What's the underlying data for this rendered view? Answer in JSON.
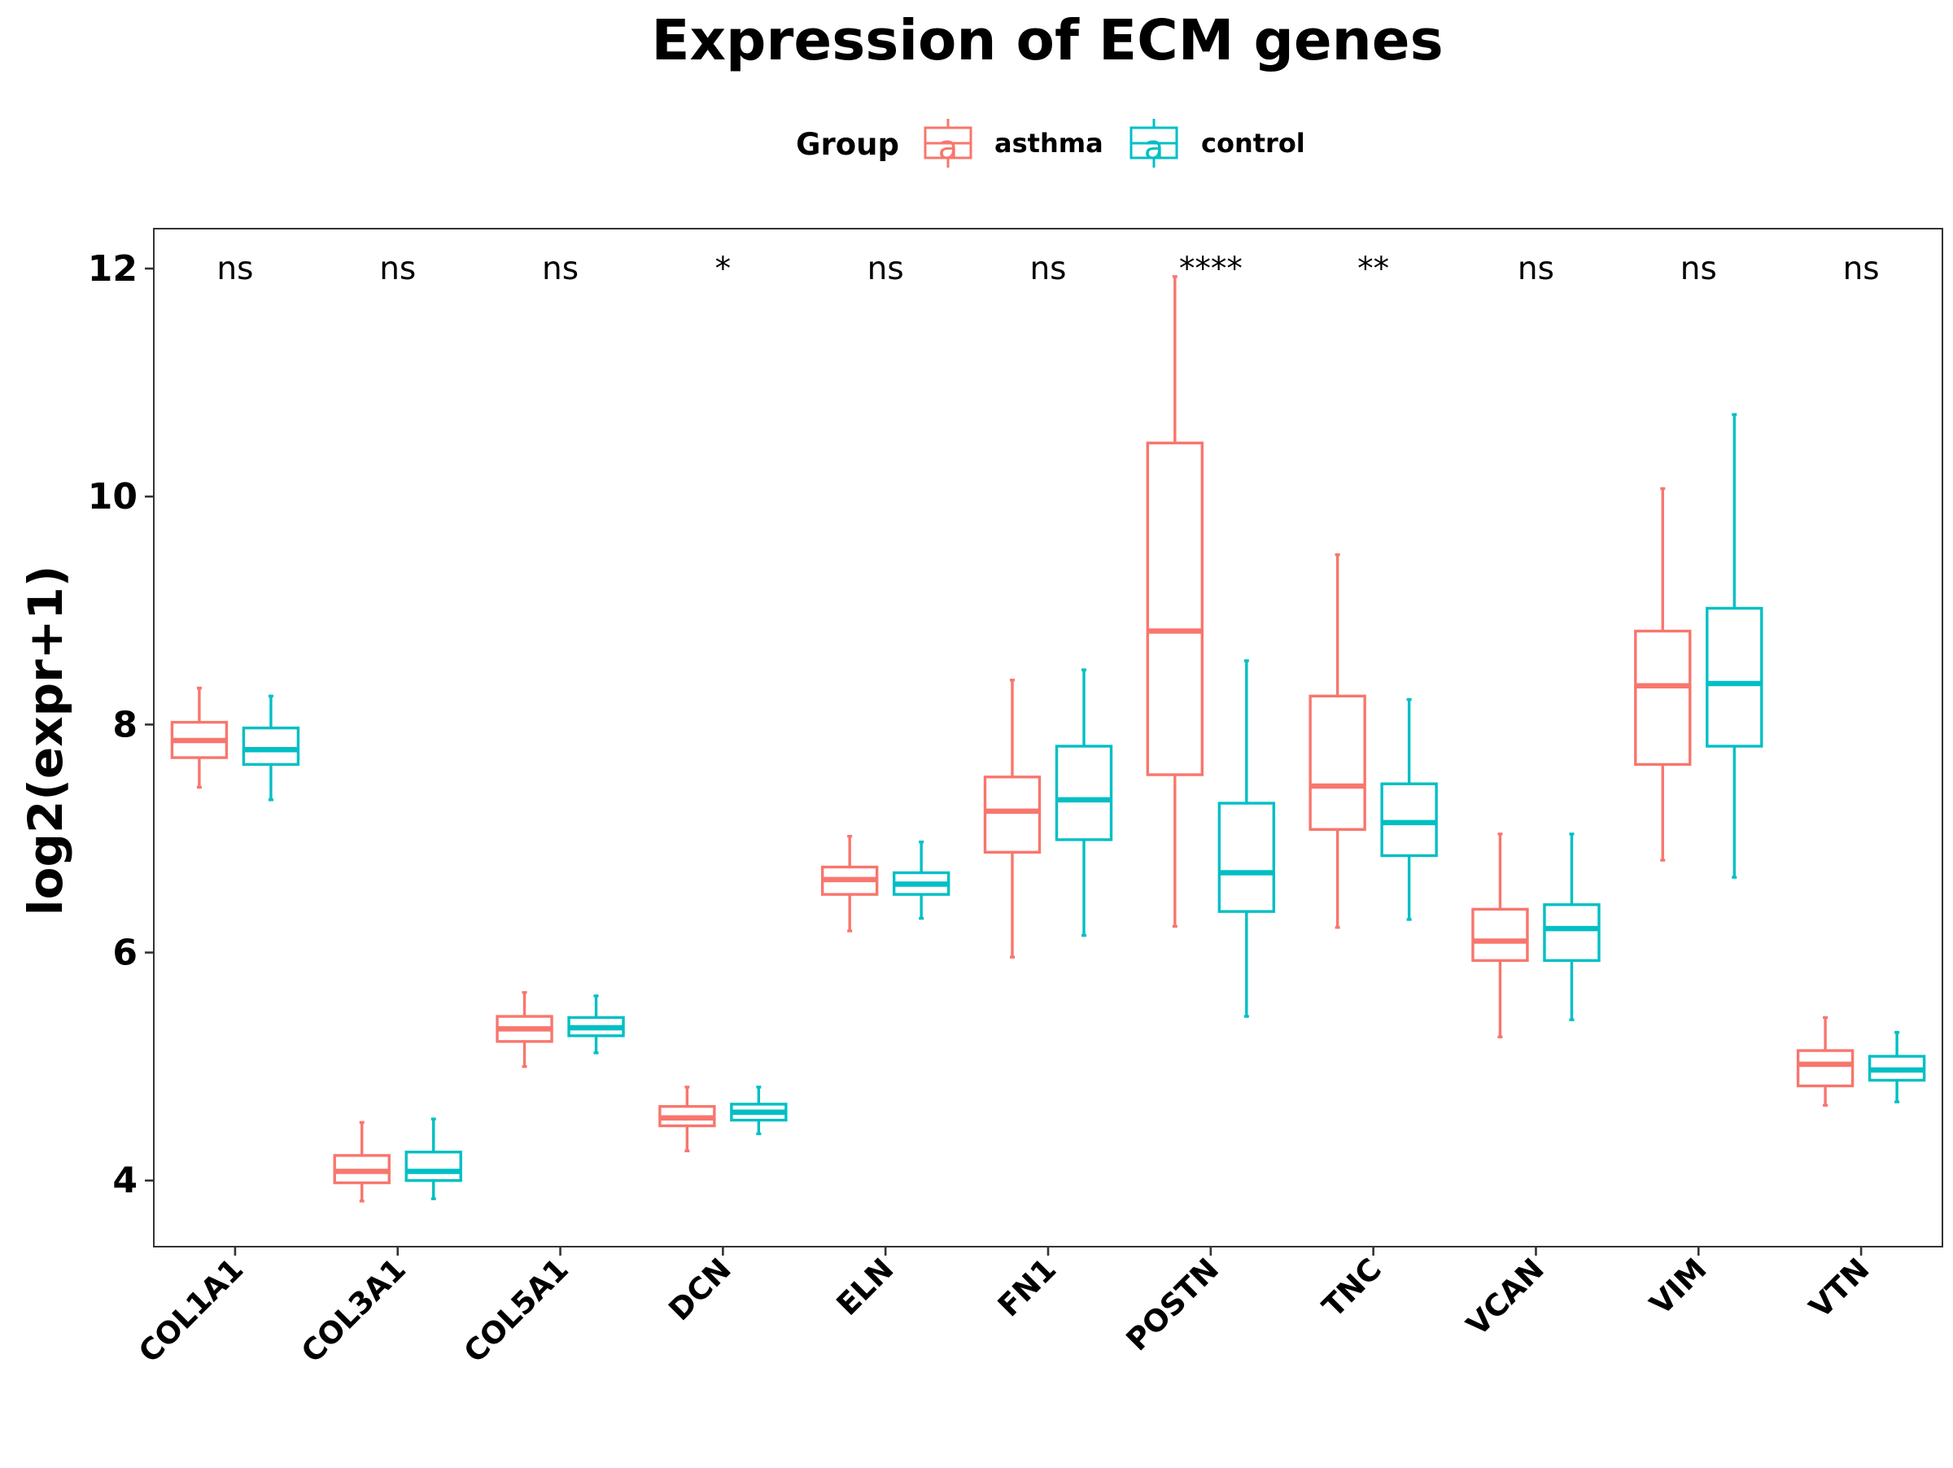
{
  "chart_data": {
    "type": "box",
    "title": "Expression of ECM genes",
    "ylabel": "log2(expr+1)",
    "xlabel": "",
    "ylim": [
      3.42,
      12.35
    ],
    "yticks": [
      4,
      6,
      8,
      10,
      12
    ],
    "grid": false,
    "legend": {
      "title": "Group",
      "position": "top",
      "key_glyph": "a"
    },
    "categories": [
      "COL1A1",
      "COL3A1",
      "COL5A1",
      "DCN",
      "ELN",
      "FN1",
      "POSTN",
      "TNC",
      "VCAN",
      "VIM",
      "VTN"
    ],
    "significance": [
      "ns",
      "ns",
      "ns",
      "*",
      "ns",
      "ns",
      "****",
      "**",
      "ns",
      "ns",
      "ns"
    ],
    "series": [
      {
        "name": "asthma",
        "color": "#F8766D",
        "boxes": [
          {
            "min": 7.45,
            "q1": 7.71,
            "median": 7.86,
            "q3": 8.02,
            "max": 8.32
          },
          {
            "min": 3.82,
            "q1": 3.98,
            "median": 4.08,
            "q3": 4.22,
            "max": 4.51
          },
          {
            "min": 5.0,
            "q1": 5.22,
            "median": 5.33,
            "q3": 5.44,
            "max": 5.65
          },
          {
            "min": 4.26,
            "q1": 4.48,
            "median": 4.55,
            "q3": 4.65,
            "max": 4.82
          },
          {
            "min": 6.19,
            "q1": 6.51,
            "median": 6.64,
            "q3": 6.75,
            "max": 7.02
          },
          {
            "min": 5.96,
            "q1": 6.88,
            "median": 7.24,
            "q3": 7.54,
            "max": 8.39
          },
          {
            "min": 6.23,
            "q1": 7.56,
            "median": 8.82,
            "q3": 10.47,
            "max": 11.93
          },
          {
            "min": 6.22,
            "q1": 7.08,
            "median": 7.46,
            "q3": 8.25,
            "max": 9.49
          },
          {
            "min": 5.26,
            "q1": 5.93,
            "median": 6.1,
            "q3": 6.38,
            "max": 7.04
          },
          {
            "min": 6.81,
            "q1": 7.65,
            "median": 8.34,
            "q3": 8.82,
            "max": 10.07
          },
          {
            "min": 4.66,
            "q1": 4.83,
            "median": 5.02,
            "q3": 5.14,
            "max": 5.43
          }
        ]
      },
      {
        "name": "control",
        "color": "#00BFC4",
        "boxes": [
          {
            "min": 7.34,
            "q1": 7.65,
            "median": 7.78,
            "q3": 7.97,
            "max": 8.25
          },
          {
            "min": 3.84,
            "q1": 4.0,
            "median": 4.08,
            "q3": 4.25,
            "max": 4.54
          },
          {
            "min": 5.12,
            "q1": 5.27,
            "median": 5.34,
            "q3": 5.43,
            "max": 5.62
          },
          {
            "min": 4.41,
            "q1": 4.53,
            "median": 4.6,
            "q3": 4.67,
            "max": 4.82
          },
          {
            "min": 6.3,
            "q1": 6.51,
            "median": 6.6,
            "q3": 6.7,
            "max": 6.97
          },
          {
            "min": 6.15,
            "q1": 6.99,
            "median": 7.34,
            "q3": 7.81,
            "max": 8.48
          },
          {
            "min": 5.44,
            "q1": 6.36,
            "median": 6.7,
            "q3": 7.31,
            "max": 8.56
          },
          {
            "min": 6.29,
            "q1": 6.85,
            "median": 7.14,
            "q3": 7.48,
            "max": 8.22
          },
          {
            "min": 5.41,
            "q1": 5.93,
            "median": 6.21,
            "q3": 6.42,
            "max": 7.04
          },
          {
            "min": 6.66,
            "q1": 7.81,
            "median": 8.36,
            "q3": 9.02,
            "max": 10.72
          },
          {
            "min": 4.69,
            "q1": 4.88,
            "median": 4.97,
            "q3": 5.09,
            "max": 5.3
          }
        ]
      }
    ]
  }
}
